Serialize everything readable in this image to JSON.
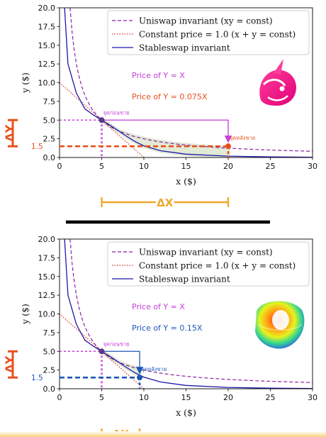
{
  "colors": {
    "uniswap": "#8a23a8",
    "constant": "#d2301e",
    "stableswap": "#1f17a8",
    "magenta": "#c43fd8",
    "orange": "#e8501e",
    "blue": "#1f57b8",
    "gold": "#f0a830",
    "band": "#c9d9b3",
    "point": "#5a3a86"
  },
  "icons": {
    "top_panel": "uniswap-unicorn-logo",
    "bottom_panel": "curve-rainbow-logo"
  },
  "chart_data": [
    {
      "type": "line",
      "xlabel": "x ($)",
      "ylabel": "y ($)",
      "xlim": [
        0,
        30
      ],
      "ylim": [
        0,
        20
      ],
      "x_ticks": [
        "0",
        "5",
        "10",
        "15",
        "20",
        "25",
        "30"
      ],
      "y_ticks": [
        "0.0",
        "2.5",
        "5.0",
        "7.5",
        "10.0",
        "12.5",
        "15.0",
        "17.5",
        "20.0"
      ],
      "grid": false,
      "legend_position": "top-right",
      "legend": [
        {
          "label": "Uniswap invariant (xy = const)",
          "style": "dashed"
        },
        {
          "label": "Constant price = 1.0 (x + y = const)",
          "style": "dotted"
        },
        {
          "label": "Stableswap invariant",
          "style": "solid"
        }
      ],
      "series": [
        {
          "name": "Uniswap invariant (xy = const)",
          "invariant": "xy = 25",
          "style": "dashed"
        },
        {
          "name": "Constant price = 1.0 (x + y = const)",
          "invariant": "x + y = 10",
          "style": "dotted"
        },
        {
          "name": "Stableswap invariant",
          "style": "solid",
          "x": [
            0.6,
            1,
            2,
            3,
            4,
            5,
            6,
            7,
            8,
            9,
            10,
            12,
            15,
            20,
            25,
            30
          ],
          "y": [
            20,
            12.5,
            8.6,
            6.5,
            5.7,
            5.0,
            4.3,
            3.55,
            2.8,
            2.1,
            1.55,
            0.9,
            0.45,
            0.18,
            0.08,
            0.03
          ]
        }
      ],
      "points": [
        {
          "label": "จุดก่อนขาย",
          "x": 5,
          "y": 5
        },
        {
          "label": "จุดหลังขาย",
          "x": 20,
          "y": 1.5
        }
      ],
      "annotations": [
        "Price of Y = X",
        "Price of Y = 0.075X",
        "1.5",
        "ΔY",
        "ΔX"
      ]
    },
    {
      "type": "line",
      "xlabel": "x ($)",
      "ylabel": "y ($)",
      "xlim": [
        0,
        30
      ],
      "ylim": [
        0,
        20
      ],
      "x_ticks": [
        "0",
        "5",
        "10",
        "15",
        "20",
        "25",
        "30"
      ],
      "y_ticks": [
        "0.0",
        "2.5",
        "5.0",
        "7.5",
        "10.0",
        "12.5",
        "15.0",
        "17.5",
        "20.0"
      ],
      "grid": false,
      "legend_position": "top-right",
      "legend": [
        {
          "label": "Uniswap invariant (xy = const)",
          "style": "dashed"
        },
        {
          "label": "Constant price = 1.0 (x + y = const)",
          "style": "dotted"
        },
        {
          "label": "Stableswap invariant",
          "style": "solid"
        }
      ],
      "series": [
        {
          "name": "Uniswap invariant (xy = const)",
          "invariant": "xy = 25",
          "style": "dashed"
        },
        {
          "name": "Constant price = 1.0 (x + y = const)",
          "invariant": "x + y = 10",
          "style": "dotted"
        },
        {
          "name": "Stableswap invariant",
          "style": "solid",
          "x": [
            0.6,
            1,
            2,
            3,
            4,
            5,
            6,
            7,
            8,
            9,
            10,
            12,
            15,
            20,
            25,
            30
          ],
          "y": [
            20,
            12.5,
            8.6,
            6.5,
            5.7,
            5.0,
            4.3,
            3.55,
            2.8,
            2.1,
            1.55,
            0.9,
            0.45,
            0.18,
            0.08,
            0.03
          ]
        }
      ],
      "points": [
        {
          "label": "จุดก่อนขาย",
          "x": 5,
          "y": 5
        },
        {
          "label": "จุดหลังขาย",
          "x": 9.5,
          "y": 1.5
        }
      ],
      "annotations": [
        "Price of Y = X",
        "Price of Y = 0.15X",
        "1.5",
        "ΔY",
        "ΔX"
      ]
    }
  ]
}
